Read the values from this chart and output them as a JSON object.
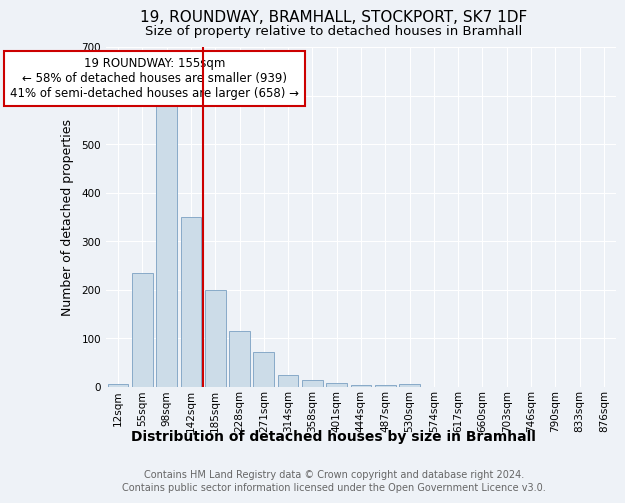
{
  "title": "19, ROUNDWAY, BRAMHALL, STOCKPORT, SK7 1DF",
  "subtitle": "Size of property relative to detached houses in Bramhall",
  "xlabel": "Distribution of detached houses by size in Bramhall",
  "ylabel": "Number of detached properties",
  "footnote1": "Contains HM Land Registry data © Crown copyright and database right 2024.",
  "footnote2": "Contains public sector information licensed under the Open Government Licence v3.0.",
  "bar_labels": [
    "12sqm",
    "55sqm",
    "98sqm",
    "142sqm",
    "185sqm",
    "228sqm",
    "271sqm",
    "314sqm",
    "358sqm",
    "401sqm",
    "444sqm",
    "487sqm",
    "530sqm",
    "574sqm",
    "617sqm",
    "660sqm",
    "703sqm",
    "746sqm",
    "790sqm",
    "833sqm",
    "876sqm"
  ],
  "bar_values": [
    7,
    235,
    590,
    350,
    200,
    115,
    72,
    25,
    15,
    8,
    5,
    5,
    7,
    0,
    0,
    0,
    0,
    0,
    0,
    0,
    0
  ],
  "bar_color": "#ccdce8",
  "bar_edge_color": "#88aac8",
  "vline_x_pos": 3.5,
  "vline_color": "#cc0000",
  "annotation_text": "19 ROUNDWAY: 155sqm\n← 58% of detached houses are smaller (939)\n41% of semi-detached houses are larger (658) →",
  "annotation_box_facecolor": "white",
  "annotation_box_edgecolor": "#cc0000",
  "ylim": [
    0,
    700
  ],
  "yticks": [
    0,
    100,
    200,
    300,
    400,
    500,
    600,
    700
  ],
  "background_color": "#eef2f7",
  "grid_color": "white",
  "title_fontsize": 11,
  "subtitle_fontsize": 9.5,
  "xlabel_fontsize": 10,
  "ylabel_fontsize": 9,
  "tick_fontsize": 7.5,
  "annotation_fontsize": 8.5,
  "footnote_fontsize": 7
}
